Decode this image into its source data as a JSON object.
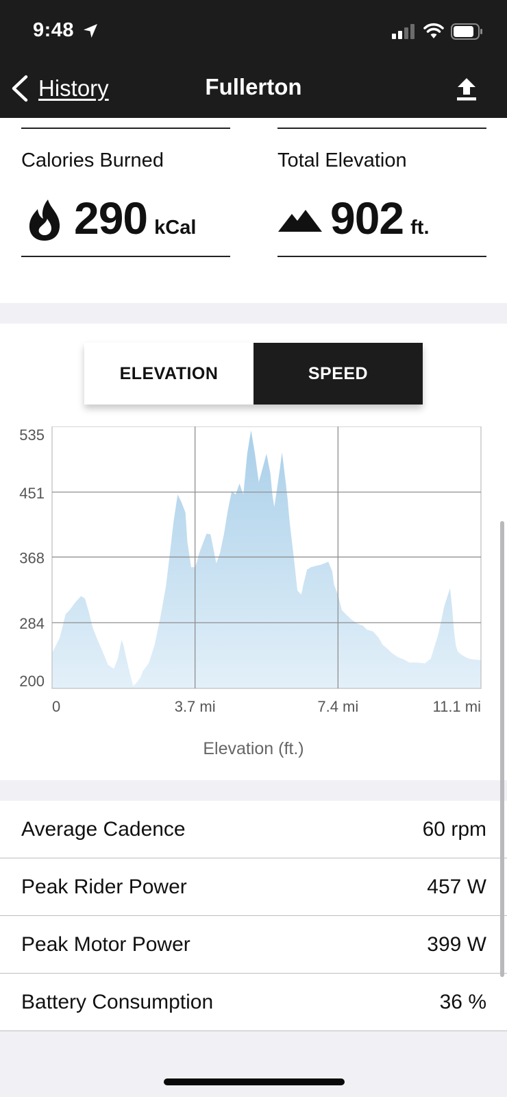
{
  "status_bar": {
    "time": "9:48"
  },
  "nav": {
    "back_label": "History",
    "title": "Fullerton"
  },
  "stats": {
    "calories": {
      "label": "Calories Burned",
      "value": "290",
      "unit": "kCal"
    },
    "elevation": {
      "label": "Total Elevation",
      "value": "902",
      "unit": "ft."
    }
  },
  "toggle": {
    "elevation_label": "ELEVATION",
    "speed_label": "SPEED",
    "selected": "SPEED"
  },
  "chart_data": {
    "type": "area",
    "xlabel": "Elevation (ft.)",
    "x_ticks": [
      "0",
      "3.7 mi",
      "7.4 mi",
      "11.1 mi"
    ],
    "x_tick_values": [
      0,
      3.7,
      7.4,
      11.1
    ],
    "y_ticks": [
      "535",
      "451",
      "368",
      "284",
      "200"
    ],
    "y_tick_values": [
      535,
      451,
      368,
      284,
      200
    ],
    "xlim": [
      0,
      11.1
    ],
    "ylim": [
      200,
      535
    ],
    "grid": true,
    "fill_color": "#a9cfe9",
    "series": [
      {
        "x": [
          0,
          0.2,
          0.35,
          0.45,
          0.6,
          0.75,
          0.85,
          0.95,
          1.05,
          1.15,
          1.3,
          1.45,
          1.6,
          1.7,
          1.8,
          1.85,
          1.9,
          2.0,
          2.1,
          2.2,
          2.3,
          2.35,
          2.5,
          2.65,
          2.8,
          2.95,
          3.05,
          3.15,
          3.25,
          3.35,
          3.45,
          3.5,
          3.6,
          3.7,
          3.75,
          3.8,
          3.9,
          4.0,
          4.1,
          4.15,
          4.25,
          4.35,
          4.45,
          4.55,
          4.65,
          4.75,
          4.85,
          4.95,
          5.05,
          5.15,
          5.25,
          5.35,
          5.45,
          5.55,
          5.65,
          5.7,
          5.75,
          5.8,
          5.9,
          5.95,
          6.0,
          6.05,
          6.1,
          6.15,
          6.25,
          6.35,
          6.45,
          6.5,
          6.6,
          6.7,
          6.85,
          6.95,
          7.05,
          7.15,
          7.25,
          7.3,
          7.4,
          7.5,
          7.6,
          7.75,
          7.9,
          8.05,
          8.15,
          8.3,
          8.45,
          8.55,
          8.65,
          8.8,
          8.95,
          9.1,
          9.25,
          9.45,
          9.65,
          9.8,
          10.0,
          10.15,
          10.3,
          10.35,
          10.4,
          10.45,
          10.5,
          10.6,
          10.7,
          10.8,
          10.9,
          11.1
        ],
        "y": [
          245,
          265,
          295,
          300,
          310,
          318,
          315,
          298,
          278,
          265,
          248,
          230,
          225,
          238,
          262,
          255,
          243,
          222,
          203,
          208,
          215,
          222,
          232,
          255,
          290,
          332,
          373,
          415,
          448,
          438,
          425,
          388,
          355,
          355,
          362,
          372,
          385,
          398,
          397,
          385,
          360,
          374,
          398,
          428,
          452,
          448,
          462,
          448,
          500,
          530,
          500,
          464,
          482,
          500,
          475,
          448,
          432,
          448,
          482,
          502,
          482,
          462,
          440,
          412,
          370,
          325,
          320,
          332,
          352,
          355,
          357,
          358,
          360,
          362,
          350,
          332,
          320,
          300,
          295,
          288,
          283,
          280,
          275,
          273,
          265,
          256,
          252,
          245,
          240,
          237,
          233,
          233,
          232,
          238,
          270,
          305,
          328,
          305,
          275,
          255,
          247,
          243,
          240,
          238,
          237,
          236
        ]
      }
    ]
  },
  "metrics": [
    {
      "label": "Average Cadence",
      "value": "60 rpm"
    },
    {
      "label": "Peak Rider Power",
      "value": "457 W"
    },
    {
      "label": "Peak Motor Power",
      "value": "399 W"
    },
    {
      "label": "Battery Consumption",
      "value": "36 %"
    }
  ]
}
